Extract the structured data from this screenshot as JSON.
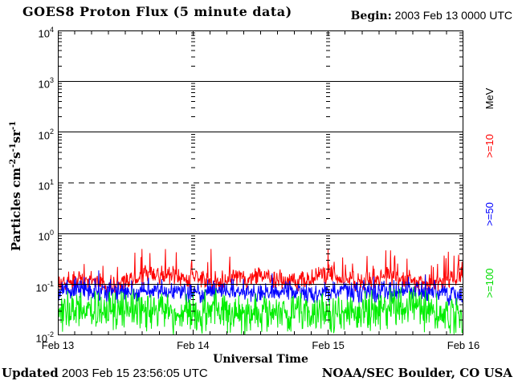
{
  "header": {
    "title": "GOES8 Proton Flux (5 minute data)",
    "begin_label": "Begin:",
    "begin_value": " 2003 Feb 13 0000 UTC"
  },
  "footer": {
    "updated_label": "Updated",
    "updated_value": " 2003 Feb 15 23:56:05 UTC",
    "source": "NOAA/SEC Boulder, CO USA"
  },
  "chart_data": {
    "type": "line",
    "title": "GOES8 Proton Flux (5 minute data)",
    "xlabel": "Universal Time",
    "ylabel_segments": [
      {
        "t": "Particles cm"
      },
      {
        "sup": "-2"
      },
      {
        "t": "s"
      },
      {
        "sup": "-1"
      },
      {
        "t": "sr"
      },
      {
        "sup": "-1"
      }
    ],
    "unit_label": "MeV",
    "x_ticks": [
      "Feb 13",
      "Feb 14",
      "Feb 15",
      "Feb 16"
    ],
    "x_range_days": 3,
    "points_per_day": 288,
    "y_scale": "log10",
    "y_tick_exponents": [
      4,
      3,
      2,
      1,
      0,
      -1,
      -2
    ],
    "ylim_log10": [
      -2,
      4
    ],
    "grid": {
      "h_solid_exponents": [
        3,
        2,
        0,
        -1
      ],
      "h_dashed_exponents": [
        1
      ],
      "v_gridline_days": [
        1,
        2
      ],
      "x_minor_ticks_hours": 3
    },
    "series": [
      {
        "name": ">=10",
        "color": "#ff0000",
        "label_color": "#ff0000",
        "approx_band_flux": [
          0.09,
          0.3
        ],
        "approx_peak_flux": 0.5,
        "log10_mean": -0.88,
        "log10_sigma": 0.11,
        "walk_amp": 0.05,
        "spike_prob": 0.06,
        "spike_min": 0.15,
        "spike_max": 0.5,
        "clamp_log10": [
          -1.18,
          -0.3
        ],
        "seed": 101
      },
      {
        "name": ">=50",
        "color": "#0000ff",
        "label_color": "#0000ff",
        "approx_band_flux": [
          0.04,
          0.13
        ],
        "approx_peak_flux": 0.19,
        "log10_mean": -1.12,
        "log10_sigma": 0.12,
        "walk_amp": 0.04,
        "spike_prob": 0.03,
        "spike_min": 0.1,
        "spike_max": 0.3,
        "clamp_log10": [
          -1.48,
          -0.7
        ],
        "seed": 202
      },
      {
        "name": ">=100",
        "color": "#00ee00",
        "label_color": "#00dd00",
        "approx_band_flux": [
          0.01,
          0.07
        ],
        "approx_peak_flux": 0.09,
        "log10_mean": -1.52,
        "log10_sigma": 0.23,
        "walk_amp": 0.04,
        "spike_prob": 0.02,
        "spike_min": 0.1,
        "spike_max": 0.25,
        "clamp_log10": [
          -2.0,
          -1.05
        ],
        "seed": 303
      }
    ],
    "legend_positions_y": {
      "unit": 123,
      ">=10": 182,
      ">=50": 267,
      ">=100": 353
    }
  }
}
